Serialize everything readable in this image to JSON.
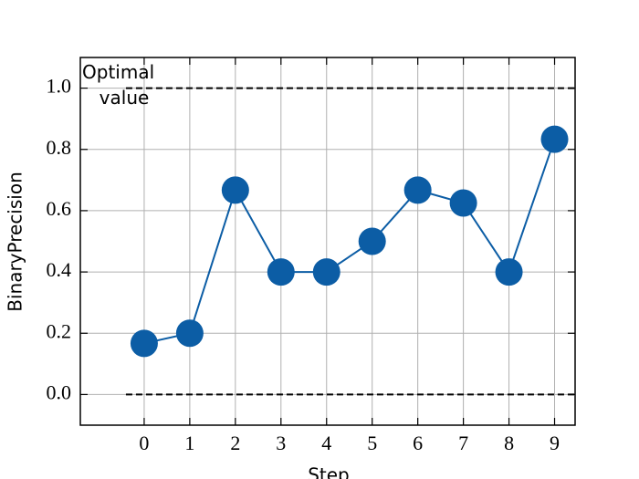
{
  "chart_data": {
    "type": "line",
    "xlabel": "Step",
    "ylabel": "BinaryPrecision",
    "annotation": [
      "Optimal",
      "value"
    ],
    "x": [
      0,
      1,
      2,
      3,
      4,
      5,
      6,
      7,
      8,
      9
    ],
    "series": [
      {
        "color": "#0c5da5",
        "values": [
          0.167,
          0.2,
          0.667,
          0.4,
          0.4,
          0.5,
          0.667,
          0.625,
          0.4,
          0.833
        ]
      }
    ],
    "hlines": [
      1.0,
      0.0
    ],
    "hline_xstart": -0.4,
    "xlim": [
      -1.4,
      9.45
    ],
    "ylim": [
      -0.1,
      1.1
    ],
    "xticks": [
      0,
      1,
      2,
      3,
      4,
      5,
      6,
      7,
      8,
      9
    ],
    "yticks": [
      {
        "value": 0,
        "label": "0.0"
      },
      0.2,
      0.4,
      0.6,
      0.8,
      {
        "value": 1,
        "label": "1.0"
      }
    ],
    "grid": true
  }
}
